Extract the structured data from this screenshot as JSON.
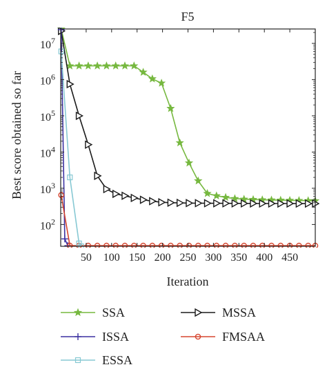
{
  "chart_data": {
    "type": "line",
    "title": "F5",
    "xlabel": "Iteration",
    "ylabel": "Best score obtained so far",
    "xlim": [
      0,
      500
    ],
    "ylim": [
      25,
      25000000
    ],
    "yscale": "log",
    "grid": false,
    "legend_position": "bottom",
    "x_ticks": [
      50,
      100,
      150,
      200,
      250,
      300,
      350,
      400,
      450
    ],
    "y_ticks": [
      {
        "value": 100,
        "label": "10",
        "exp": "2"
      },
      {
        "value": 1000,
        "label": "10",
        "exp": "3"
      },
      {
        "value": 10000,
        "label": "10",
        "exp": "4"
      },
      {
        "value": 100000,
        "label": "10",
        "exp": "5"
      },
      {
        "value": 1000000,
        "label": "10",
        "exp": "6"
      },
      {
        "value": 10000000,
        "label": "10",
        "exp": "7"
      }
    ],
    "series": [
      {
        "name": "SSA",
        "color": "#76b83f",
        "marker": "star",
        "x": [
          1,
          18,
          36,
          54,
          72,
          90,
          108,
          126,
          144,
          162,
          180,
          198,
          216,
          234,
          252,
          270,
          288,
          306,
          324,
          342,
          360,
          378,
          396,
          414,
          432,
          450,
          468,
          486,
          500
        ],
        "y": [
          25000000,
          2400000,
          2400000,
          2400000,
          2400000,
          2400000,
          2400000,
          2400000,
          2400000,
          1600000,
          1050000,
          800000,
          160000,
          18000,
          5000,
          1600,
          720,
          620,
          560,
          520,
          500,
          490,
          480,
          475,
          470,
          465,
          460,
          455,
          450
        ]
      },
      {
        "name": "MSSA",
        "color": "#1a1a1a",
        "marker": "triangle-right",
        "x": [
          1,
          18,
          36,
          54,
          72,
          90,
          108,
          126,
          144,
          162,
          180,
          198,
          216,
          234,
          252,
          270,
          288,
          306,
          324,
          342,
          360,
          378,
          396,
          414,
          432,
          450,
          468,
          486,
          500
        ],
        "y": [
          22000000,
          750000,
          100000,
          16000,
          2200,
          950,
          700,
          620,
          540,
          480,
          440,
          410,
          400,
          395,
          390,
          388,
          386,
          385,
          384,
          383,
          382,
          381,
          380,
          380,
          379,
          379,
          378,
          378,
          378
        ]
      },
      {
        "name": "ISSA",
        "color": "#3a2fa0",
        "marker": "plus",
        "x": [
          1,
          8,
          14
        ],
        "y": [
          24000000,
          40,
          26
        ]
      },
      {
        "name": "FMSAA",
        "color": "#d6452e",
        "marker": "circle",
        "x": [
          1,
          18,
          36,
          54,
          72,
          90,
          108,
          126,
          144,
          162,
          180,
          198,
          216,
          234,
          252,
          270,
          288,
          306,
          324,
          342,
          360,
          378,
          396,
          414,
          432,
          450,
          468,
          486,
          500
        ],
        "y": [
          650,
          26,
          26,
          26,
          26,
          26,
          26,
          26,
          26,
          26,
          26,
          26,
          26,
          26,
          26,
          26,
          26,
          26,
          26,
          26,
          26,
          26,
          26,
          26,
          26,
          26,
          26,
          26,
          26
        ]
      },
      {
        "name": "ESSA",
        "color": "#86c8d3",
        "marker": "square",
        "x": [
          1,
          18,
          36,
          40
        ],
        "y": [
          6000000,
          2000,
          30,
          25
        ]
      }
    ]
  }
}
